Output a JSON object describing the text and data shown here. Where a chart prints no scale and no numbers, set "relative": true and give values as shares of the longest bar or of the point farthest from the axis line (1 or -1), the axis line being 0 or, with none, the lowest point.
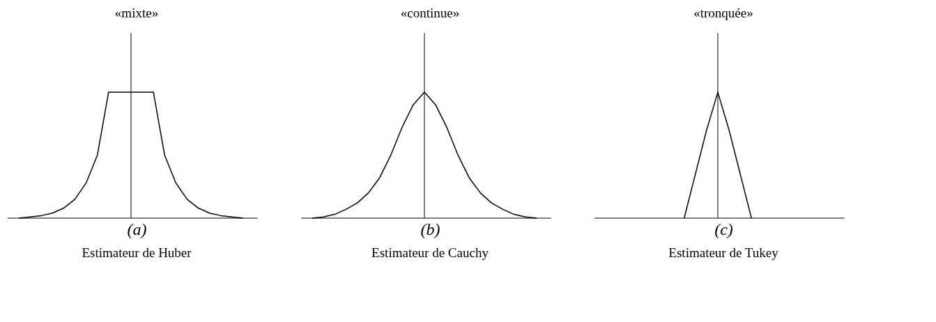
{
  "chart_data": [
    {
      "type": "line",
      "relative": true,
      "title": "«mixte»",
      "xlabel": "(a)",
      "annotations": [
        "Estimateur de Huber"
      ],
      "color": "#000000",
      "categories": [
        null,
        null,
        null,
        null,
        null,
        null,
        null,
        null,
        null,
        null,
        null,
        null,
        null,
        null,
        null,
        null,
        null,
        null,
        null,
        null,
        null
      ],
      "values": [
        0,
        0.01,
        0.02,
        0.04,
        0.08,
        0.15,
        0.28,
        0.5,
        1,
        1,
        1,
        1,
        1,
        0.5,
        0.28,
        0.15,
        0.08,
        0.04,
        0.02,
        0.01,
        0
      ]
    },
    {
      "type": "line",
      "relative": true,
      "title": "«continue»",
      "xlabel": "(b)",
      "annotations": [
        "Estimateur de Cauchy"
      ],
      "color": "#000000",
      "categories": [
        null,
        null,
        null,
        null,
        null,
        null,
        null,
        null,
        null,
        null,
        null,
        null,
        null,
        null,
        null,
        null,
        null,
        null,
        null,
        null,
        null
      ],
      "values": [
        0,
        0.01,
        0.03,
        0.07,
        0.12,
        0.2,
        0.32,
        0.5,
        0.72,
        0.9,
        1,
        0.9,
        0.72,
        0.5,
        0.32,
        0.2,
        0.12,
        0.07,
        0.03,
        0.01,
        0
      ]
    },
    {
      "type": "line",
      "relative": true,
      "title": "«tronquée»",
      "xlabel": "(c)",
      "annotations": [
        "Estimateur de Tukey"
      ],
      "color": "#000000",
      "categories": [
        null,
        null,
        null,
        null,
        null,
        null,
        null,
        null,
        null,
        null,
        null,
        null,
        null,
        null,
        null,
        null,
        null,
        null,
        null,
        null,
        null
      ],
      "values": [
        null,
        null,
        null,
        null,
        null,
        null,
        null,
        0,
        0.35,
        0.7,
        1,
        0.7,
        0.35,
        0,
        null,
        null,
        null,
        null,
        null,
        null,
        null
      ]
    }
  ]
}
